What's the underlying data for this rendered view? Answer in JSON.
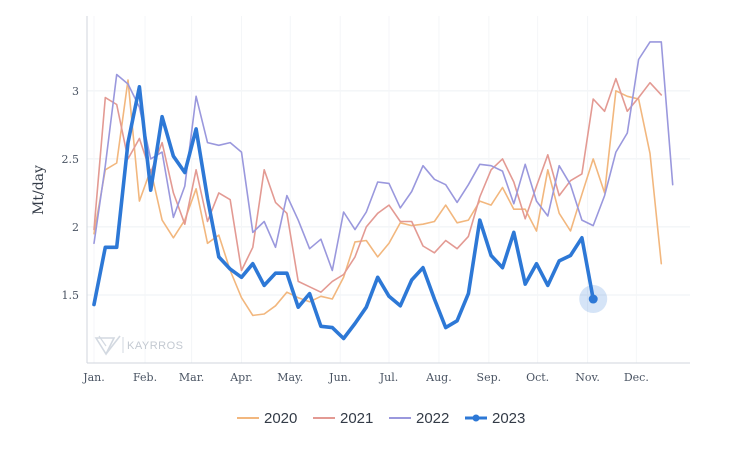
{
  "chart_data": {
    "type": "line",
    "title": "",
    "xlabel": "",
    "ylabel": "Mt/day",
    "ylim": [
      1.0,
      3.55
    ],
    "yticks": [
      1.5,
      2,
      2.5,
      3
    ],
    "ytick_labels": [
      "1.5",
      "2",
      "2.5",
      "3"
    ],
    "xlim": [
      0,
      52
    ],
    "x_unit": "week of year",
    "months": [
      {
        "label": "Jan.",
        "x": 0
      },
      {
        "label": "Feb.",
        "x": 4.5
      },
      {
        "label": "Mar.",
        "x": 8.6
      },
      {
        "label": "Apr.",
        "x": 13.0
      },
      {
        "label": "May.",
        "x": 17.3
      },
      {
        "label": "Jun.",
        "x": 21.7
      },
      {
        "label": "Jul.",
        "x": 26.0
      },
      {
        "label": "Aug.",
        "x": 30.4
      },
      {
        "label": "Sep.",
        "x": 34.8
      },
      {
        "label": "Oct.",
        "x": 39.1
      },
      {
        "label": "Nov.",
        "x": 43.5
      },
      {
        "label": "Dec.",
        "x": 47.8
      }
    ],
    "grid": true,
    "legend_position": "bottom",
    "series": [
      {
        "name": "2020",
        "color": "#f2b77e",
        "values": [
          1.95,
          2.42,
          2.47,
          3.08,
          2.19,
          2.42,
          2.05,
          1.92,
          2.05,
          2.28,
          1.88,
          1.94,
          1.68,
          1.48,
          1.35,
          1.36,
          1.42,
          1.52,
          1.48,
          1.45,
          1.49,
          1.47,
          1.63,
          1.89,
          1.9,
          1.78,
          1.88,
          2.03,
          2.01,
          2.02,
          2.04,
          2.16,
          2.03,
          2.05,
          2.19,
          2.16,
          2.29,
          2.13,
          2.13,
          1.97,
          2.42,
          2.1,
          1.97,
          2.24,
          2.5,
          2.25,
          3.0,
          2.96,
          2.94,
          2.54,
          1.73
        ]
      },
      {
        "name": "2021",
        "color": "#e39a93",
        "values": [
          1.98,
          2.95,
          2.9,
          2.5,
          2.65,
          2.4,
          2.62,
          2.25,
          2.02,
          2.42,
          2.04,
          2.25,
          2.2,
          1.68,
          1.85,
          2.42,
          2.18,
          2.1,
          1.6,
          1.56,
          1.52,
          1.6,
          1.65,
          1.78,
          2.0,
          2.1,
          2.16,
          2.04,
          2.04,
          1.86,
          1.81,
          1.9,
          1.84,
          1.93,
          2.22,
          2.42,
          2.5,
          2.33,
          2.06,
          2.3,
          2.53,
          2.23,
          2.34,
          2.39,
          2.94,
          2.85,
          3.09,
          2.85,
          2.95,
          3.06,
          2.97
        ]
      },
      {
        "name": "2022",
        "color": "#9a98dd",
        "values": [
          1.88,
          2.45,
          3.12,
          3.05,
          2.88,
          2.5,
          2.55,
          2.07,
          2.3,
          2.96,
          2.62,
          2.6,
          2.62,
          2.55,
          1.96,
          2.04,
          1.85,
          2.23,
          2.05,
          1.84,
          1.91,
          1.68,
          2.11,
          1.98,
          2.11,
          2.33,
          2.32,
          2.14,
          2.26,
          2.45,
          2.35,
          2.31,
          2.18,
          2.31,
          2.46,
          2.45,
          2.41,
          2.17,
          2.46,
          2.19,
          2.08,
          2.45,
          2.31,
          2.05,
          2.01,
          2.23,
          2.55,
          2.69,
          3.23,
          3.36,
          3.36,
          2.31
        ]
      },
      {
        "name": "2023",
        "color": "#2d78d6",
        "values": [
          1.43,
          1.85,
          1.85,
          2.62,
          3.03,
          2.27,
          2.81,
          2.52,
          2.4,
          2.72,
          2.21,
          1.78,
          1.69,
          1.63,
          1.73,
          1.57,
          1.66,
          1.66,
          1.41,
          1.51,
          1.27,
          1.26,
          1.18,
          1.29,
          1.41,
          1.63,
          1.49,
          1.42,
          1.61,
          1.7,
          1.47,
          1.26,
          1.31,
          1.51,
          2.05,
          1.79,
          1.7,
          1.96,
          1.58,
          1.73,
          1.57,
          1.75,
          1.79,
          1.92,
          1.47
        ]
      }
    ],
    "highlighted_point": {
      "series": "2023",
      "x": 44,
      "y": 1.47
    }
  },
  "legend": {
    "items": [
      {
        "label": "2020",
        "color": "#f2b77e",
        "marker": false
      },
      {
        "label": "2021",
        "color": "#e39a93",
        "marker": false
      },
      {
        "label": "2022",
        "color": "#9a98dd",
        "marker": false
      },
      {
        "label": "2023",
        "color": "#2d78d6",
        "marker": true
      }
    ]
  },
  "watermark": {
    "text": "KAYRROS"
  }
}
